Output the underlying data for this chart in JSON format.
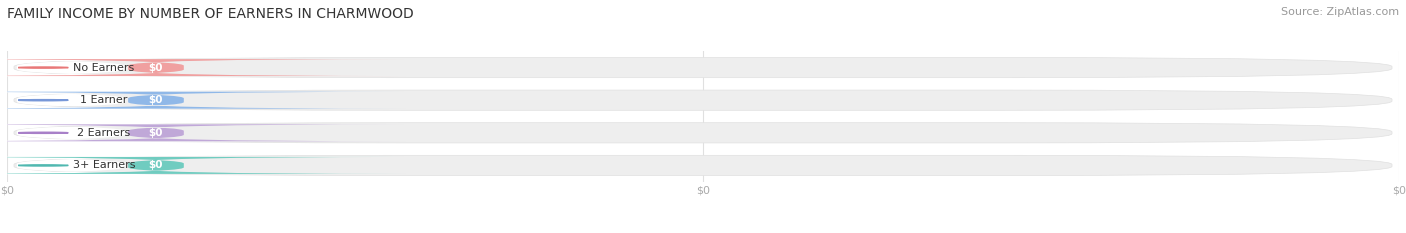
{
  "title": "FAMILY INCOME BY NUMBER OF EARNERS IN CHARMWOOD",
  "source": "Source: ZipAtlas.com",
  "categories": [
    "No Earners",
    "1 Earner",
    "2 Earners",
    "3+ Earners"
  ],
  "values": [
    0,
    0,
    0,
    0
  ],
  "bar_colors": [
    "#f0a0a0",
    "#90b8e8",
    "#c0a8d8",
    "#70ccc0"
  ],
  "bar_bg_colors": [
    "#f0f0f0",
    "#f0f0f0",
    "#f0f0f0",
    "#f0f0f0"
  ],
  "dot_colors": [
    "#e87878",
    "#7898d8",
    "#a880c8",
    "#50b8b0"
  ],
  "background_color": "#ffffff",
  "plot_bg_color": "#ffffff",
  "title_fontsize": 10,
  "source_fontsize": 8,
  "tick_color": "#aaaaaa",
  "grid_color": "#e0e0e0",
  "bar_edge_color": "#e0e0e0"
}
